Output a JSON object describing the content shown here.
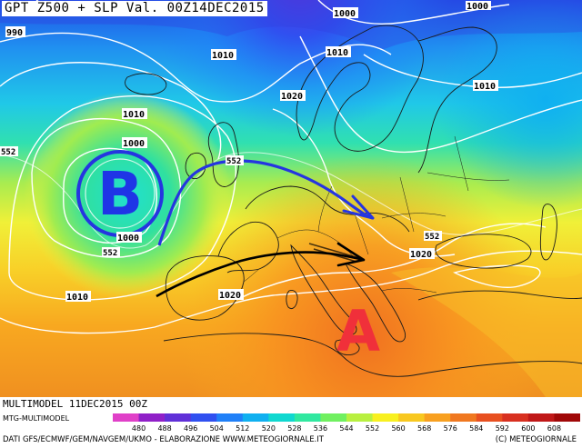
{
  "title": "GPT Z500 + SLP Val. 00Z14DEC2015",
  "run_label": "MULTIMODEL 11DEC2015 00Z",
  "model_label": "MTG-MULTIMODEL",
  "credits_left": "DATI GFS/ECMWF/GEM/NAVGEM/UKMO - ELABORAZIONE WWW.METEOGIORNALE.IT",
  "credits_right": "(C) METEOGIORNALE",
  "low_letter": "B",
  "high_letter": "A",
  "isobar_labels": [
    {
      "id": "iso-990",
      "text": "990"
    },
    {
      "id": "iso-1000-n",
      "text": "1000"
    },
    {
      "id": "iso-1000-ne",
      "text": "1000"
    },
    {
      "id": "iso-1010-a",
      "text": "1010"
    },
    {
      "id": "iso-1010-b",
      "text": "1010"
    },
    {
      "id": "iso-1010-c",
      "text": "1010"
    },
    {
      "id": "iso-1010-d",
      "text": "1010"
    },
    {
      "id": "iso-1020-a",
      "text": "1020"
    },
    {
      "id": "iso-1000-low",
      "text": "1000"
    },
    {
      "id": "iso-1000-low2",
      "text": "1000"
    },
    {
      "id": "iso-1020-b",
      "text": "1020"
    },
    {
      "id": "iso-1020-c",
      "text": "1020"
    },
    {
      "id": "iso-1010-e",
      "text": "1010"
    }
  ],
  "z500_labels": [
    {
      "id": "z552-w",
      "text": "552"
    },
    {
      "id": "z552-b",
      "text": "552"
    },
    {
      "id": "z552-c",
      "text": "552"
    },
    {
      "id": "z552-e",
      "text": "552"
    }
  ],
  "legend": {
    "values": [
      "480",
      "488",
      "496",
      "504",
      "512",
      "520",
      "528",
      "536",
      "544",
      "552",
      "560",
      "568",
      "576",
      "584",
      "592",
      "600",
      "608"
    ],
    "colors": [
      "#e040c8",
      "#9020c8",
      "#6030d8",
      "#3050f0",
      "#2080f8",
      "#10b0f0",
      "#10d8d0",
      "#30e8a0",
      "#70f060",
      "#b8f040",
      "#f8f020",
      "#f8c820",
      "#f8a020",
      "#f07820",
      "#e85020",
      "#d83020",
      "#c01818",
      "#a00808"
    ]
  },
  "colors": {
    "low_fill": "#1f35e6",
    "high_fill": "#f0303a",
    "jet_blue": "#2535e0",
    "jet_black": "#000000"
  }
}
